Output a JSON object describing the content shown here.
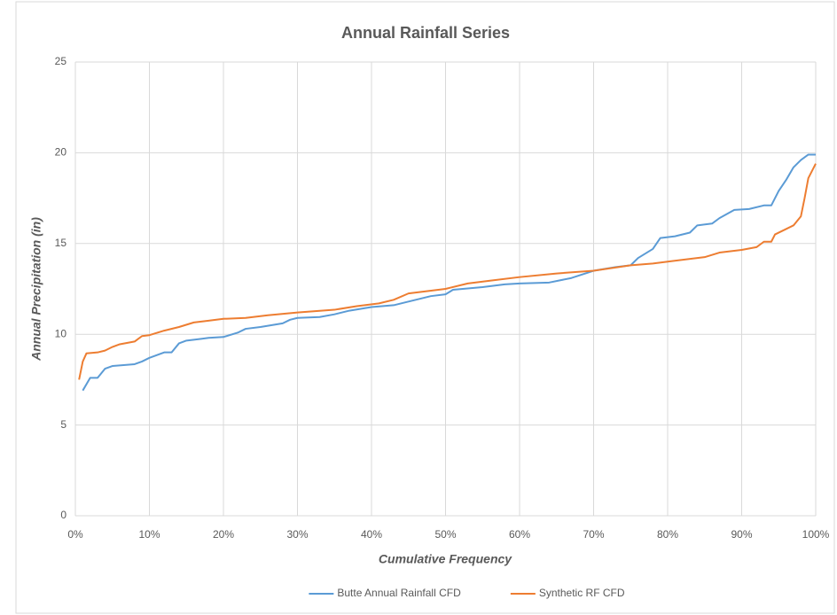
{
  "chart_data": {
    "type": "line",
    "title": "Annual Rainfall Series",
    "x_label": "Cumulative Frequency",
    "y_label": "Annual Precipitation (in)",
    "xlim": [
      0,
      100
    ],
    "ylim": [
      0,
      25
    ],
    "xticks": [
      {
        "value": 0,
        "label": "0%"
      },
      {
        "value": 10,
        "label": "10%"
      },
      {
        "value": 20,
        "label": "20%"
      },
      {
        "value": 30,
        "label": "30%"
      },
      {
        "value": 40,
        "label": "40%"
      },
      {
        "value": 50,
        "label": "50%"
      },
      {
        "value": 60,
        "label": "60%"
      },
      {
        "value": 70,
        "label": "70%"
      },
      {
        "value": 80,
        "label": "80%"
      },
      {
        "value": 90,
        "label": "90%"
      },
      {
        "value": 100,
        "label": "100%"
      }
    ],
    "yticks": [
      0,
      5,
      10,
      15,
      20,
      25
    ],
    "grid": true,
    "legend": "bottom",
    "series": [
      {
        "name": "Butte Annual Rainfall CFD",
        "color": "#5b9bd5",
        "x": [
          1,
          2,
          3,
          4,
          5,
          8,
          9,
          10,
          12,
          13,
          14,
          15,
          17,
          18,
          20,
          22,
          23,
          25,
          28,
          29,
          30,
          33,
          35,
          37,
          40,
          43,
          45,
          48,
          50,
          51,
          55,
          58,
          60,
          64,
          67,
          70,
          73,
          75,
          76,
          78,
          79,
          81,
          83,
          84,
          86,
          87,
          89,
          91,
          93,
          94,
          95,
          96,
          97,
          98,
          99,
          100
        ],
        "values": [
          6.9,
          7.6,
          7.6,
          8.1,
          8.25,
          8.35,
          8.5,
          8.7,
          9.0,
          9.0,
          9.5,
          9.65,
          9.75,
          9.8,
          9.85,
          10.1,
          10.3,
          10.4,
          10.6,
          10.8,
          10.9,
          10.95,
          11.1,
          11.3,
          11.5,
          11.6,
          11.8,
          12.1,
          12.2,
          12.45,
          12.6,
          12.75,
          12.8,
          12.85,
          13.1,
          13.5,
          13.7,
          13.8,
          14.2,
          14.7,
          15.3,
          15.4,
          15.6,
          16.0,
          16.1,
          16.4,
          16.85,
          16.9,
          17.1,
          17.1,
          17.9,
          18.5,
          19.2,
          19.6,
          19.9,
          19.9
        ]
      },
      {
        "name": "Synthetic RF CFD",
        "color": "#ed7d31",
        "x": [
          0.5,
          1,
          1.5,
          3,
          4,
          5,
          6,
          8,
          9,
          10,
          12,
          14,
          16,
          18,
          20,
          23,
          26,
          30,
          35,
          38,
          41,
          43,
          45,
          50,
          53,
          56,
          60,
          65,
          70,
          75,
          78,
          80,
          85,
          87,
          90,
          92,
          93,
          94,
          94.5,
          96,
          97,
          98,
          98.5,
          99,
          100
        ],
        "values": [
          7.5,
          8.5,
          8.95,
          9.0,
          9.1,
          9.3,
          9.45,
          9.6,
          9.9,
          9.95,
          10.2,
          10.4,
          10.65,
          10.75,
          10.85,
          10.9,
          11.05,
          11.2,
          11.35,
          11.55,
          11.7,
          11.9,
          12.25,
          12.5,
          12.8,
          12.95,
          13.15,
          13.35,
          13.5,
          13.8,
          13.9,
          14.0,
          14.25,
          14.5,
          14.65,
          14.8,
          15.1,
          15.1,
          15.5,
          15.8,
          16.0,
          16.5,
          17.5,
          18.6,
          19.4
        ]
      }
    ]
  }
}
